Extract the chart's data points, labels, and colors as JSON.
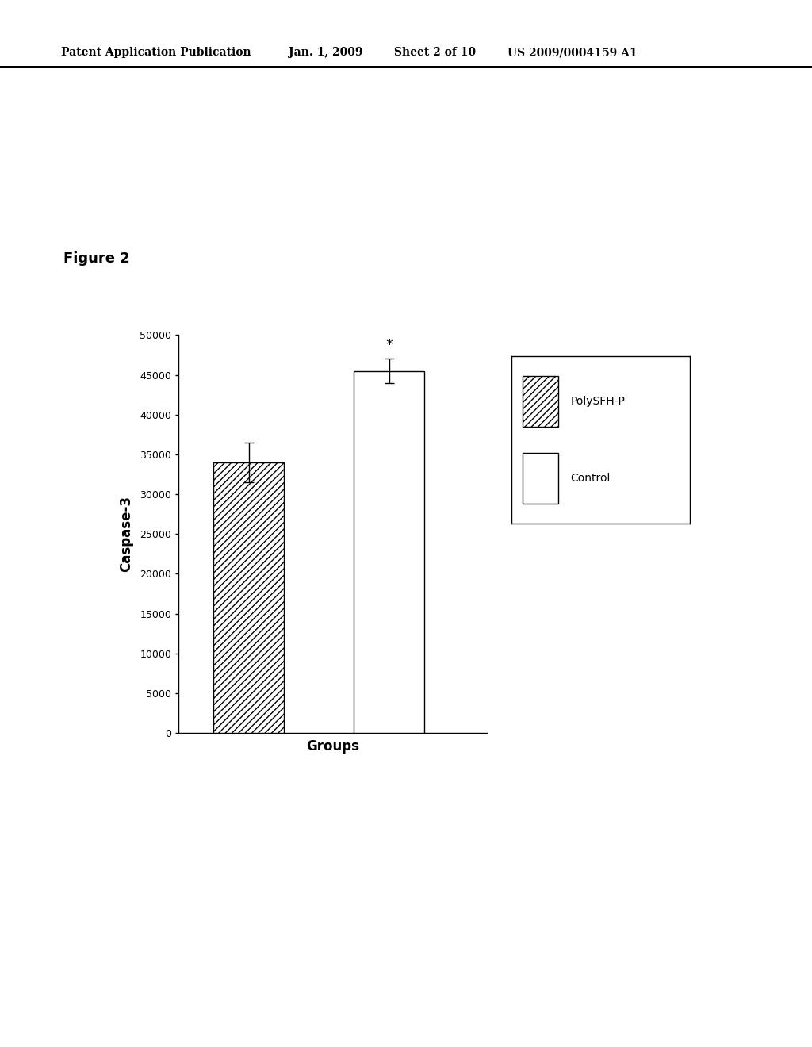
{
  "categories": [
    "PolySFH-P",
    "Control"
  ],
  "values": [
    34000,
    45500
  ],
  "error_bars": [
    2500,
    1500
  ],
  "bar_colors": [
    "white",
    "white"
  ],
  "bar_hatches": [
    "////",
    ""
  ],
  "bar_edgecolors": [
    "black",
    "black"
  ],
  "ylabel": "Caspase-3",
  "xlabel": "Groups",
  "ylim": [
    0,
    50000
  ],
  "yticks": [
    0,
    5000,
    10000,
    15000,
    20000,
    25000,
    30000,
    35000,
    40000,
    45000,
    50000
  ],
  "legend_labels": [
    "PolySFH-P",
    "Control"
  ],
  "legend_hatches": [
    "////",
    ""
  ],
  "significance_label": "*",
  "significance_bar_idx": 1,
  "header_left": "Patent Application Publication",
  "header_date": "Jan. 1, 2009",
  "header_sheet": "Sheet 2 of 10",
  "header_patent": "US 2009/0004159 A1",
  "figure_label": "Figure 2",
  "background_color": "white",
  "bar_width": 0.5
}
